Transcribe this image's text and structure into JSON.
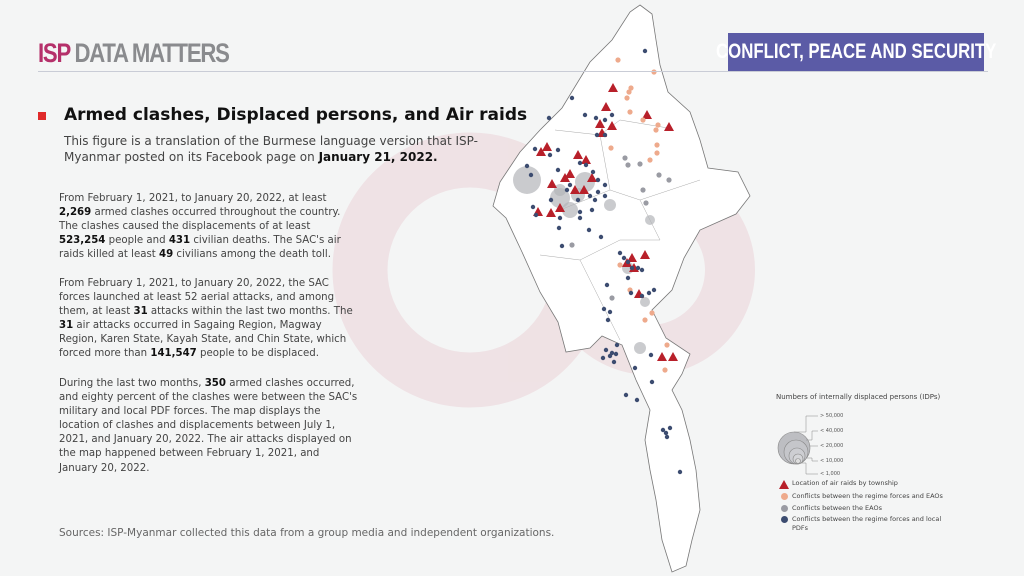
{
  "header": {
    "brand_isp": "ISP",
    "brand_rest": "DATA MATTERS",
    "category_tag": "CONFLICT, PEACE AND SECURITY"
  },
  "title": "Armed clashes, Displaced persons, and Air raids",
  "subtitle": {
    "text": "This figure is a translation of the Burmese language version that ISP-Myanmar posted on its Facebook page on ",
    "date": "January 21, 2022."
  },
  "paragraphs": [
    [
      "From February 1, 2021, to January 20, 2022, at least ",
      "2,269",
      " armed clashes occurred throughout the country. The clashes caused the displacements of at least ",
      "523,254",
      " people and ",
      "431",
      " civilian deaths. The SAC's air raids killed at least ",
      "49",
      " civilians among the death toll."
    ],
    [
      "From February 1, 2021, to January 20, 2022, the SAC forces launched at least 52 aerial attacks, and among them, at least ",
      "31",
      " attacks within the last two months. The ",
      "31",
      " air attacks occurred in Sagaing Region, Magway Region, Karen State, Kayah State, and Chin State, which forced more than ",
      "141,547",
      " people to be displaced."
    ],
    [
      "During the last two months, ",
      "350",
      " armed clashes occurred, and eighty percent of the clashes were between the SAC's military and local PDF forces. The map displays the location of clashes and displacements between July 1, 2021, and January 20, 2022. The air attacks displayed on the map happened between February 1, 2021, and January 20, 2022."
    ]
  ],
  "sources": "Sources: ISP-Myanmar collected this data from a group media and independent organizations.",
  "legend": {
    "title": "Numbers of internally displaced persons (IDPs)",
    "sizes": [
      "> 50,000",
      "< 40,000",
      "< 20,000",
      "< 10,000",
      "< 1,000"
    ],
    "items": [
      {
        "symbol": "triangle",
        "color": "#b8202a",
        "label": "Location of air raids by township"
      },
      {
        "symbol": "dot",
        "color": "#eeaa8c",
        "label": "Conflicts between the regime forces and EAOs"
      },
      {
        "symbol": "dot",
        "color": "#9a9ba3",
        "label": "Conflicts between the EAOs"
      },
      {
        "symbol": "dot",
        "color": "#3c4c70",
        "label": "Conflicts between the regime forces and local PDFs"
      }
    ]
  },
  "colors": {
    "brand": "#b5306a",
    "tag_bg": "#5b5ba6",
    "bullet": "#e02a2a",
    "idp_circle": "#b4b5b9"
  }
}
